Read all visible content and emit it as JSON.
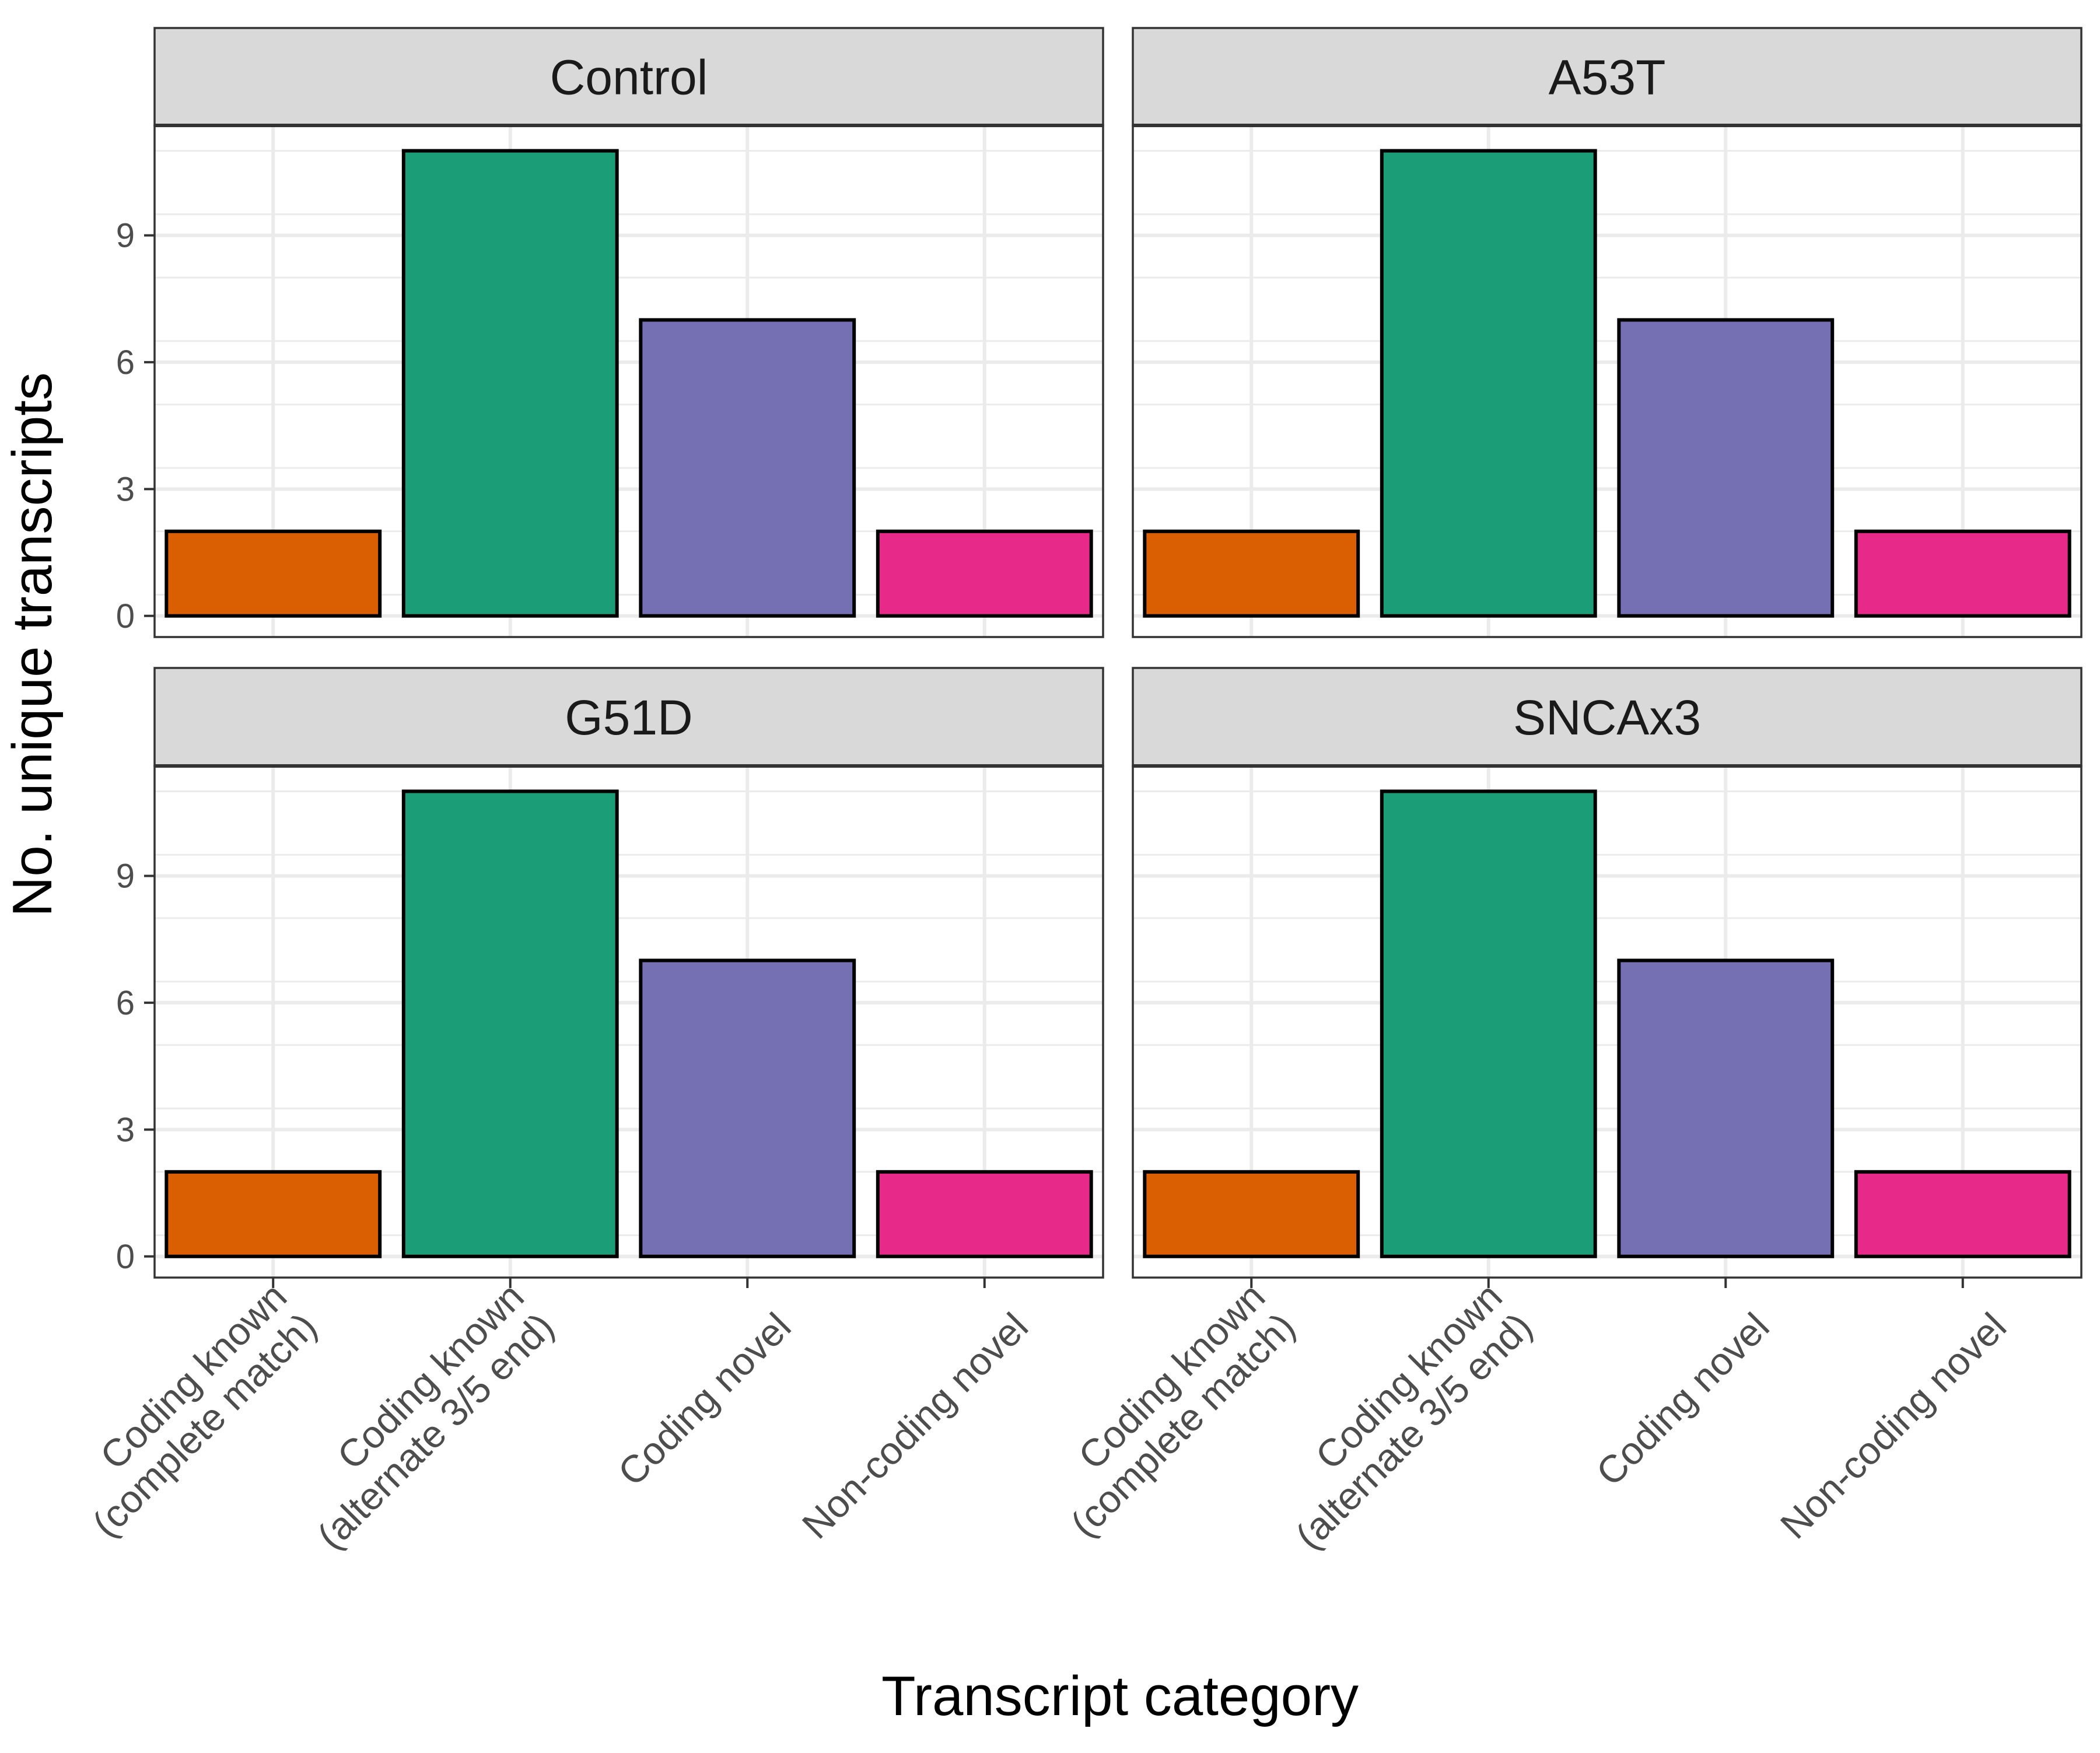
{
  "chart_data": {
    "type": "bar",
    "xlabel": "Transcript category",
    "ylabel": "No. unique transcripts",
    "ylim": [
      -0.5,
      11.6
    ],
    "yticks": [
      0,
      3,
      6,
      9
    ],
    "grid": true,
    "legend": "none",
    "categories": [
      [
        "Coding known",
        "(complete match)"
      ],
      [
        "Coding known",
        "(alternate 3/5 end)"
      ],
      [
        "Coding novel"
      ],
      [
        "Non-coding novel"
      ]
    ],
    "colors": [
      "#D95F02",
      "#1B9E77",
      "#7570B3",
      "#E7298A"
    ],
    "panels": [
      {
        "name": "Control",
        "values": [
          2,
          11,
          7,
          2
        ]
      },
      {
        "name": "A53T",
        "values": [
          2,
          11,
          7,
          2
        ]
      },
      {
        "name": "G51D",
        "values": [
          2,
          11,
          7,
          2
        ]
      },
      {
        "name": "SNCAx3",
        "values": [
          2,
          11,
          7,
          2
        ]
      }
    ]
  }
}
